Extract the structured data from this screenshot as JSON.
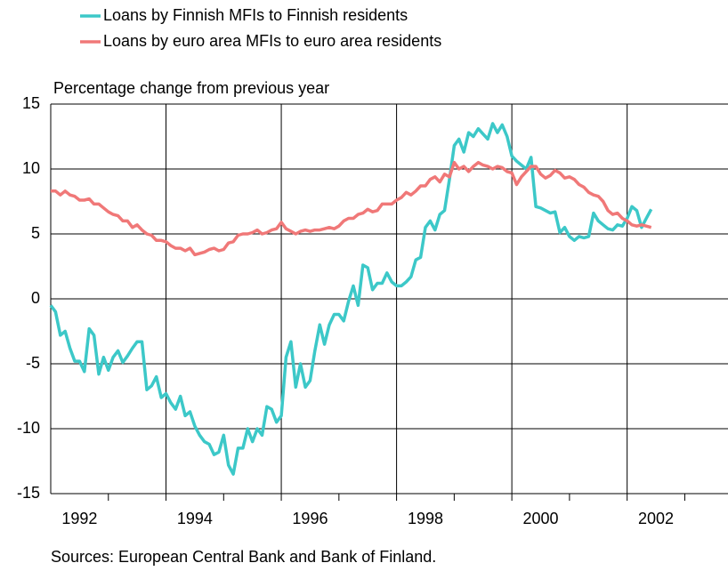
{
  "chart_data": {
    "type": "line",
    "y_axis_label": "Percentage change from previous year",
    "source": "Sources: European Central Bank and Bank of Finland.",
    "xlim": [
      1992,
      2003.75
    ],
    "xticks": [
      {
        "value": 1992.5,
        "label": "1992"
      },
      {
        "value": 1994.5,
        "label": "1994"
      },
      {
        "value": 1996.5,
        "label": "1996"
      },
      {
        "value": 1998.5,
        "label": "1998"
      },
      {
        "value": 2000.5,
        "label": "2000"
      },
      {
        "value": 2002.5,
        "label": "2002"
      }
    ],
    "x_gridlines": [
      1994,
      1996,
      1998,
      2000,
      2002
    ],
    "x_minor_ticks": [
      1993,
      1995,
      1997,
      1999,
      2001,
      2003
    ],
    "ylim": [
      -15,
      15
    ],
    "yticks": [
      -15,
      -10,
      -5,
      0,
      5,
      10,
      15
    ],
    "grid": true,
    "legend_position": "top",
    "x": [
      1992,
      1992.083,
      1992.167,
      1992.25,
      1992.333,
      1992.417,
      1992.5,
      1992.583,
      1992.667,
      1992.75,
      1992.833,
      1992.917,
      1993,
      1993.083,
      1993.167,
      1993.25,
      1993.333,
      1993.417,
      1993.5,
      1993.583,
      1993.667,
      1993.75,
      1993.833,
      1993.917,
      1994,
      1994.083,
      1994.167,
      1994.25,
      1994.333,
      1994.417,
      1994.5,
      1994.583,
      1994.667,
      1994.75,
      1994.833,
      1994.917,
      1995,
      1995.083,
      1995.167,
      1995.25,
      1995.333,
      1995.417,
      1995.5,
      1995.583,
      1995.667,
      1995.75,
      1995.833,
      1995.917,
      1996,
      1996.083,
      1996.167,
      1996.25,
      1996.333,
      1996.417,
      1996.5,
      1996.583,
      1996.667,
      1996.75,
      1996.833,
      1996.917,
      1997,
      1997.083,
      1997.167,
      1997.25,
      1997.333,
      1997.417,
      1997.5,
      1997.583,
      1997.667,
      1997.75,
      1997.833,
      1997.917,
      1998,
      1998.083,
      1998.167,
      1998.25,
      1998.333,
      1998.417,
      1998.5,
      1998.583,
      1998.667,
      1998.75,
      1998.833,
      1998.917,
      1999,
      1999.083,
      1999.167,
      1999.25,
      1999.333,
      1999.417,
      1999.5,
      1999.583,
      1999.667,
      1999.75,
      1999.833,
      1999.917,
      2000,
      2000.083,
      2000.167,
      2000.25,
      2000.333,
      2000.417,
      2000.5,
      2000.583,
      2000.667,
      2000.75,
      2000.833,
      2000.917,
      2001,
      2001.083,
      2001.167,
      2001.25,
      2001.333,
      2001.417,
      2001.5,
      2001.583,
      2001.667,
      2001.75,
      2001.833,
      2001.917,
      2002,
      2002.083,
      2002.167,
      2002.25,
      2002.333,
      2002.417
    ],
    "series": [
      {
        "name": "Loans by Finnish MFIs to Finnish residents",
        "color": "#3cc8c8",
        "values": [
          -0.5,
          -1,
          -2.8,
          -2.5,
          -3.8,
          -4.8,
          -4.8,
          -5.6,
          -2.3,
          -2.8,
          -5.8,
          -4.5,
          -5.5,
          -4.5,
          -4,
          -4.9,
          -4.4,
          -3.8,
          -3.3,
          -3.3,
          -7,
          -6.7,
          -6,
          -7.6,
          -7.3,
          -8,
          -8.5,
          -7.5,
          -9,
          -8.7,
          -9.8,
          -10.5,
          -11,
          -11.2,
          -12,
          -11.8,
          -10.5,
          -12.8,
          -13.5,
          -11.5,
          -11.5,
          -10,
          -11,
          -10,
          -10.5,
          -8.3,
          -8.5,
          -9.5,
          -9,
          -4.5,
          -3.3,
          -6.8,
          -5,
          -6.8,
          -6.3,
          -4,
          -2,
          -3.5,
          -2,
          -1.2,
          -1.2,
          -1.7,
          -0.2,
          1,
          -0.5,
          2.6,
          2.4,
          0.7,
          1.2,
          1.2,
          2,
          1.3,
          1,
          1,
          1.3,
          1.7,
          3,
          3.2,
          5.5,
          6,
          5.3,
          6.5,
          6.8,
          9.2,
          11.8,
          12.3,
          11.3,
          12.8,
          12.5,
          13.1,
          12.7,
          12.3,
          13.5,
          12.8,
          13.4,
          12.5,
          11,
          10.6,
          10.3,
          10,
          10.9,
          7.1,
          7,
          6.8,
          6.6,
          6.7,
          5.1,
          5.5,
          4.8,
          4.5,
          4.8,
          4.7,
          4.8,
          6.6,
          6,
          5.7,
          5.4,
          5.3,
          5.7,
          5.6,
          6.2,
          7.1,
          6.8,
          5.5,
          6.2,
          6.9
        ]
      },
      {
        "name": "Loans by euro area MFIs to euro area residents",
        "color": "#f07878",
        "values": [
          8.3,
          8.3,
          8,
          8.3,
          8,
          7.9,
          7.6,
          7.6,
          7.7,
          7.3,
          7.3,
          7,
          6.7,
          6.5,
          6.4,
          6,
          6,
          5.5,
          5.7,
          5.3,
          5,
          4.9,
          4.5,
          4.5,
          4.4,
          4.1,
          3.9,
          3.9,
          3.7,
          3.9,
          3.4,
          3.5,
          3.6,
          3.8,
          3.9,
          3.7,
          3.8,
          4.3,
          4.4,
          4.9,
          5,
          5,
          5.1,
          5.3,
          5,
          5.1,
          5.3,
          5.4,
          5.9,
          5.4,
          5.2,
          5,
          5.2,
          5.3,
          5.2,
          5.3,
          5.3,
          5.4,
          5.5,
          5.4,
          5.6,
          6,
          6.2,
          6.2,
          6.5,
          6.6,
          6.9,
          6.7,
          6.8,
          7.3,
          7.3,
          7.3,
          7.6,
          7.8,
          8.2,
          8,
          8.3,
          8.7,
          8.7,
          9.2,
          9.4,
          9,
          9.6,
          9.4,
          10.5,
          10,
          10.2,
          9.8,
          10.2,
          10.5,
          10.3,
          10.2,
          10,
          10.2,
          10.1,
          9.8,
          9.7,
          8.8,
          9.4,
          9.8,
          10.2,
          10.2,
          9.6,
          9.3,
          9.5,
          9.9,
          9.7,
          9.3,
          9.4,
          9.2,
          8.8,
          8.6,
          8.2,
          8,
          7.9,
          7.5,
          6.8,
          6.5,
          6.6,
          6.2,
          6,
          5.7,
          5.6,
          5.7,
          5.6,
          5.5
        ]
      }
    ]
  }
}
